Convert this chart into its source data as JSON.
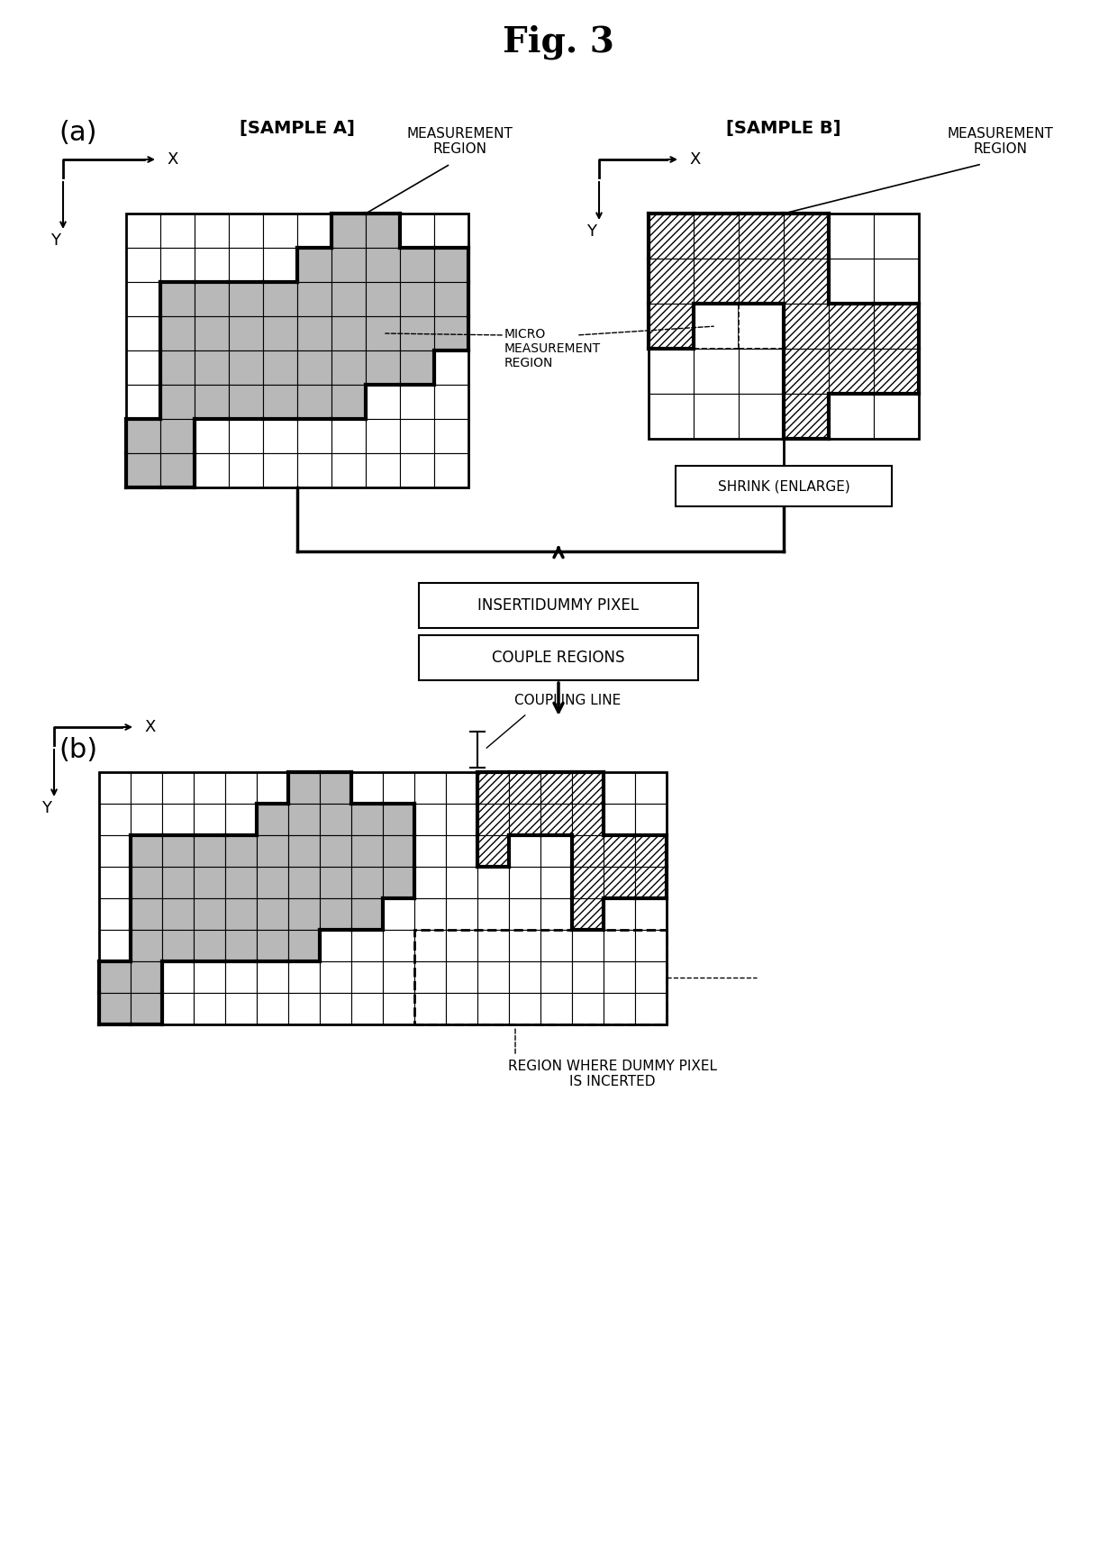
{
  "title": "Fig. 3",
  "bg_color": "#ffffff",
  "label_a": "[SAMPLE A]",
  "label_b": "[SAMPLE B]",
  "label_meas_a": "MEASUREMENT\nREGION",
  "label_meas_b": "MEASUREMENT\nREGION",
  "label_micro": "MICRO\nMEASUREMENT\nREGION",
  "label_shrink": "SHRINK (ENLARGE)",
  "label_insert": "INSERTIDUMMY PIXEL",
  "label_couple": "COUPLE REGIONS",
  "label_coupling_line": "COUPLING LINE",
  "label_dummy": "REGION WHERE DUMMY PIXEL\nIS INCERTED",
  "label_a_sub": "(a)",
  "label_b_sub": "(b)",
  "hatch_gray": "#b0b0b0",
  "hatch_white": "white"
}
